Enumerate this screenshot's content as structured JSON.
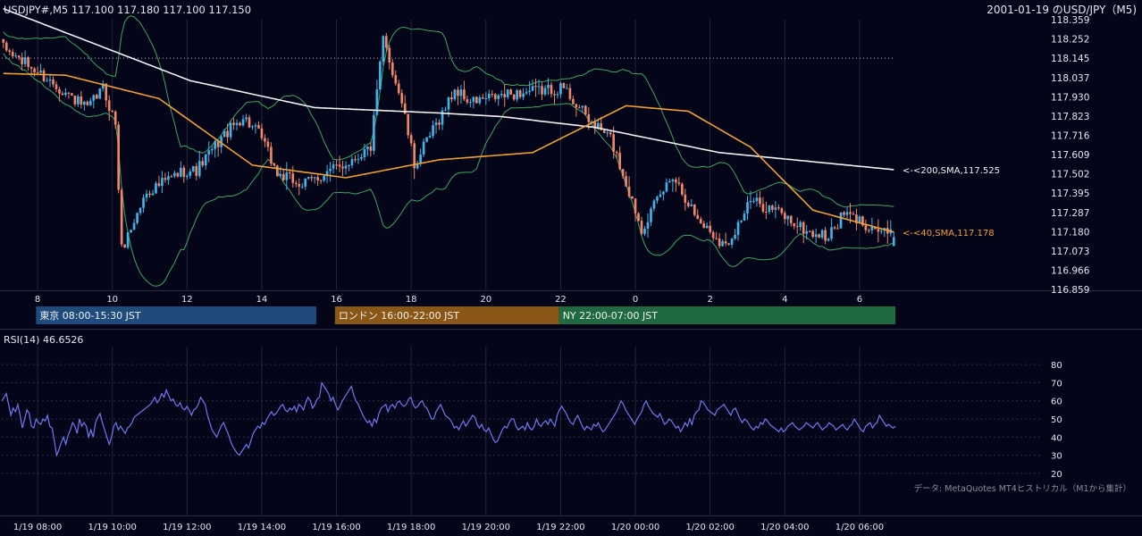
{
  "header": {
    "symbol_info": "USDJPY#,M5 117.100 117.180 117.100 117.150",
    "date_title": "2001-01-19 のUSD/JPY（M5)"
  },
  "price_axis": {
    "ticks": [
      118.359,
      118.252,
      118.145,
      118.037,
      117.93,
      117.823,
      117.716,
      117.609,
      117.502,
      117.395,
      117.287,
      117.18,
      117.073,
      116.966,
      116.859
    ],
    "tick_labels": [
      "118.359",
      "118.252",
      "118.145",
      "118.037",
      "117.930",
      "117.823",
      "117.716",
      "117.609",
      "117.502",
      "117.395",
      "117.287",
      "117.180",
      "117.073",
      "116.966",
      "116.859"
    ],
    "ylim": [
      116.859,
      118.359
    ],
    "dotted_level": 118.145
  },
  "hour_axis": {
    "labels": [
      "8",
      "10",
      "12",
      "14",
      "16",
      "18",
      "20",
      "22",
      "0",
      "2",
      "4",
      "6"
    ]
  },
  "sessions": [
    {
      "label": "東京 08:00-15:30 JST",
      "color": "#1f4a7c"
    },
    {
      "label": "ロンドン 16:00-22:00 JST",
      "color": "#8a5716"
    },
    {
      "label": "NY 22:00-07:00 JST",
      "color": "#1f6a40"
    }
  ],
  "rsi": {
    "title": "RSI(14) 46.6526",
    "ticks": [
      80,
      70,
      60,
      50,
      40,
      30,
      20
    ],
    "tick_labels": [
      "80",
      "70",
      "60",
      "50",
      "40",
      "30",
      "20"
    ],
    "ylim": [
      15,
      85
    ]
  },
  "credit": "データ: MetaQuotes MT4ヒストリカル（M1から集計）",
  "time_axis": {
    "labels": [
      "1/19 08:00",
      "1/19 10:00",
      "1/19 12:00",
      "1/19 14:00",
      "1/19 16:00",
      "1/19 18:00",
      "1/19 20:00",
      "1/19 22:00",
      "1/20 00:00",
      "1/20 02:00",
      "1/20 04:00",
      "1/20 06:00"
    ]
  },
  "colors": {
    "background": "#050519",
    "bull": "#3fb4e8",
    "bear": "#f0866a",
    "sma40": "#f0a030",
    "sma200": "#f2f2f2",
    "bollinger": "#3aa860",
    "rsi": "#6f78f0",
    "grid": "#23263a"
  },
  "chart_data": [
    {
      "type": "candlestick",
      "title": "USDJPY#,M5 117.100 117.180 117.100 117.150",
      "ylim": [
        116.859,
        118.359
      ],
      "x_range": [
        "1/19 07:05",
        "1/20 06:50"
      ],
      "series": [
        {
          "name": "<-<200,SMA,117.525",
          "last": 117.525,
          "keypoints": [
            [
              0,
              118.42
            ],
            [
              60,
              118.02
            ],
            [
              100,
              117.87
            ],
            [
              140,
              117.84
            ],
            [
              160,
              117.82
            ],
            [
              190,
              117.76
            ],
            [
              230,
              117.62
            ],
            [
              286,
              117.525
            ]
          ]
        },
        {
          "name": "<-<40,SMA,117.178",
          "last": 117.178,
          "keypoints": [
            [
              0,
              118.06
            ],
            [
              20,
              118.05
            ],
            [
              50,
              117.92
            ],
            [
              80,
              117.55
            ],
            [
              110,
              117.48
            ],
            [
              140,
              117.58
            ],
            [
              170,
              117.62
            ],
            [
              200,
              117.88
            ],
            [
              220,
              117.85
            ],
            [
              240,
              117.65
            ],
            [
              260,
              117.3
            ],
            [
              286,
              117.178
            ]
          ]
        }
      ],
      "close_keypoints": [
        [
          0,
          118.2
        ],
        [
          10,
          118.08
        ],
        [
          18,
          117.98
        ],
        [
          27,
          117.86
        ],
        [
          32,
          117.98
        ],
        [
          36,
          117.78
        ],
        [
          38,
          117.08
        ],
        [
          46,
          117.4
        ],
        [
          58,
          117.52
        ],
        [
          62,
          117.52
        ],
        [
          70,
          117.7
        ],
        [
          77,
          117.82
        ],
        [
          83,
          117.7
        ],
        [
          88,
          117.5
        ],
        [
          96,
          117.44
        ],
        [
          110,
          117.56
        ],
        [
          118,
          117.65
        ],
        [
          122,
          118.25
        ],
        [
          128,
          117.9
        ],
        [
          132,
          117.55
        ],
        [
          145,
          117.97
        ],
        [
          150,
          117.9
        ],
        [
          165,
          117.95
        ],
        [
          180,
          117.98
        ],
        [
          188,
          117.8
        ],
        [
          195,
          117.7
        ],
        [
          205,
          117.2
        ],
        [
          215,
          117.5
        ],
        [
          223,
          117.25
        ],
        [
          232,
          117.1
        ],
        [
          240,
          117.35
        ],
        [
          248,
          117.3
        ],
        [
          258,
          117.18
        ],
        [
          265,
          117.15
        ],
        [
          270,
          117.28
        ],
        [
          286,
          117.15
        ]
      ],
      "last_candle": {
        "open": 117.1,
        "high": 117.18,
        "low": 117.1,
        "close": 117.15
      }
    },
    {
      "type": "line",
      "title": "RSI(14) 46.6526",
      "ylim": [
        15,
        85
      ],
      "series": [
        {
          "name": "RSI(14)",
          "values": [
            60,
            62,
            64,
            58,
            52,
            56,
            54,
            58,
            52,
            45,
            50,
            55,
            53,
            46,
            45,
            50,
            48,
            47,
            50,
            49,
            52,
            46,
            45,
            38,
            30,
            33,
            37,
            40,
            36,
            41,
            44,
            48,
            46,
            42,
            50,
            46,
            48,
            46,
            40,
            44,
            40,
            48,
            51,
            53,
            48,
            44,
            40,
            36,
            40,
            46,
            48,
            44,
            46,
            44,
            42,
            45,
            46,
            48,
            51,
            52,
            53,
            54,
            55,
            56,
            57,
            58,
            60,
            62,
            59,
            61,
            64,
            62,
            66,
            63,
            60,
            61,
            58,
            57,
            59,
            56,
            55,
            57,
            55,
            52,
            55,
            56,
            58,
            62,
            60,
            58,
            52,
            48,
            44,
            42,
            40,
            43,
            46,
            48,
            45,
            42,
            38,
            35,
            33,
            31,
            30,
            32,
            34,
            36,
            34,
            38,
            42,
            44,
            46,
            45,
            48,
            47,
            50,
            52,
            54,
            52,
            53,
            55,
            57,
            58,
            55,
            54,
            56,
            55,
            57,
            54,
            58,
            57,
            55,
            59,
            62,
            60,
            56,
            58,
            61,
            62,
            70,
            68,
            66,
            64,
            60,
            62,
            58,
            55,
            57,
            60,
            62,
            64,
            66,
            68,
            63,
            60,
            58,
            55,
            52,
            50,
            48,
            49,
            46,
            50,
            48,
            53,
            56,
            57,
            58,
            54,
            57,
            58,
            56,
            59,
            60,
            58,
            57,
            58,
            61,
            62,
            58,
            56,
            57,
            59,
            60,
            57,
            56,
            53,
            50,
            50,
            54,
            56,
            58,
            55,
            52,
            51,
            50,
            48,
            45,
            46,
            44,
            47,
            49,
            46,
            48,
            50,
            52,
            51,
            47,
            45,
            47,
            44,
            43,
            45,
            42,
            39,
            37,
            38,
            41,
            44,
            46,
            45,
            48,
            50,
            50,
            46,
            44,
            45,
            46,
            44,
            48,
            45,
            44,
            46,
            50,
            47,
            46,
            48,
            49,
            47,
            50,
            48,
            46,
            52,
            55,
            57,
            55,
            53,
            50,
            48,
            47,
            50,
            52,
            49,
            46,
            44,
            46,
            45,
            44,
            47,
            46,
            48,
            45,
            43,
            44,
            46,
            48,
            50,
            52,
            54,
            57,
            60,
            58,
            55,
            53,
            51,
            49,
            47,
            50,
            52,
            54,
            58,
            60,
            57,
            55,
            53,
            52,
            51,
            53,
            50,
            47,
            48,
            50,
            49,
            47,
            45,
            46,
            43,
            45,
            48,
            46,
            50,
            47,
            52,
            54,
            55,
            60,
            59,
            57,
            55,
            54,
            53,
            52,
            55,
            56,
            57,
            58,
            56,
            54,
            52,
            55,
            56,
            53,
            50,
            48,
            50,
            49,
            47,
            45,
            44,
            46,
            45,
            48,
            47,
            50,
            49,
            47,
            46,
            45,
            44,
            43,
            45,
            43,
            44,
            46,
            47,
            48,
            46,
            45,
            44,
            45,
            46,
            48,
            47,
            46,
            45,
            47,
            48,
            46,
            44,
            45,
            46,
            48,
            47,
            46,
            44,
            45,
            46,
            47,
            45,
            44,
            46,
            47,
            50,
            48,
            46,
            44,
            43,
            46,
            47,
            48,
            45,
            47,
            48,
            52,
            50,
            48,
            46,
            47,
            46,
            45,
            46
          ]
        }
      ]
    }
  ]
}
